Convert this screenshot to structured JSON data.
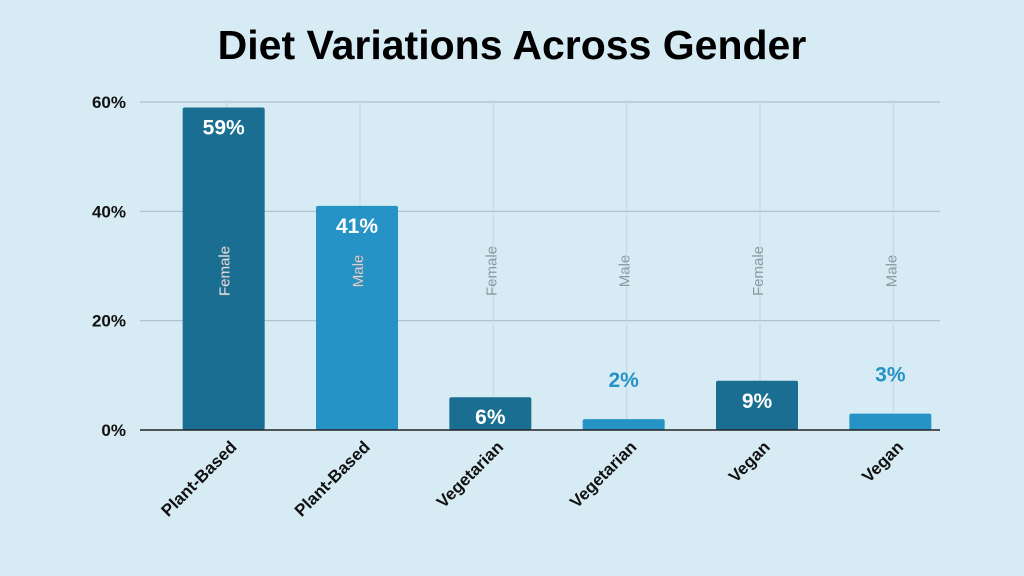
{
  "chart_data": {
    "type": "bar",
    "title": "Diet Variations Across Gender",
    "xlabel": "",
    "ylabel": "",
    "ylim": [
      0,
      60
    ],
    "y_ticks": [
      0,
      20,
      40,
      60
    ],
    "y_tick_format": "%",
    "grid": true,
    "categories": [
      "Plant-Based",
      "Plant-Based",
      "Vegetarian",
      "Vegetarian",
      "Vegan",
      "Vegan"
    ],
    "genders": [
      "Female",
      "Male",
      "Female",
      "Male",
      "Female",
      "Male"
    ],
    "values": [
      59,
      41,
      6,
      2,
      9,
      3
    ],
    "value_labels": [
      "59%",
      "41%",
      "6%",
      "2%",
      "9%",
      "3%"
    ],
    "colors": {
      "female": "#1a6e91",
      "male": "#2593c6",
      "background": "#d6ebf4",
      "grid": "#a9bfca",
      "gender_label_outside": "#8a9aa3"
    }
  }
}
